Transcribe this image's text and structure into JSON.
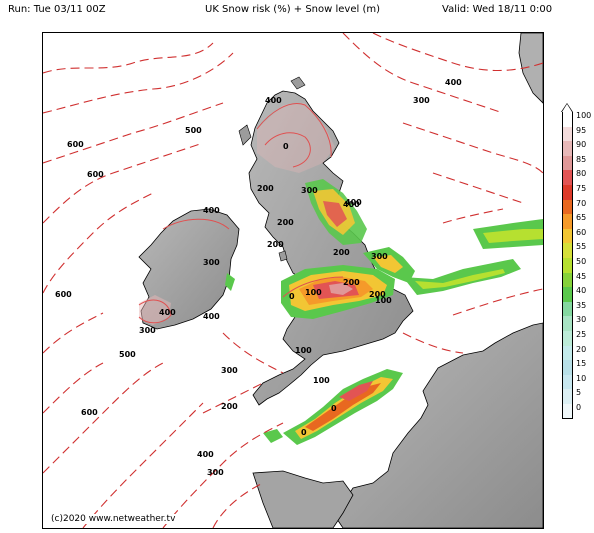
{
  "header": {
    "run": "Run: Tue 03/11 00Z",
    "title": "UK Snow risk (%) + Snow level (m)",
    "valid": "Valid: Wed 18/11 0:00"
  },
  "copyright": "(c)2020 www.netweather.tv",
  "contour_labels": [
    "400",
    "300",
    "400",
    "500",
    "600",
    "600",
    "0",
    "200",
    "200",
    "300",
    "400",
    "200",
    "400",
    "600",
    "200",
    "300",
    "200",
    "100",
    "400",
    "300",
    "400",
    "200",
    "100",
    "0",
    "100",
    "500",
    "300",
    "200",
    "600",
    "100",
    "0",
    "0",
    "400",
    "300",
    "300",
    "400"
  ],
  "legend": {
    "levels": [
      "100",
      "95",
      "90",
      "85",
      "80",
      "75",
      "70",
      "65",
      "60",
      "55",
      "50",
      "45",
      "40",
      "35",
      "30",
      "25",
      "20",
      "15",
      "10",
      "5",
      "0"
    ],
    "colors": [
      "#ffffff",
      "#f4dcdc",
      "#e8b8b8",
      "#e09898",
      "#e25454",
      "#dd3a2a",
      "#e86820",
      "#f59a2a",
      "#f2c634",
      "#d6e03a",
      "#b6e030",
      "#86d23a",
      "#5ac84c",
      "#84d8a0",
      "#a8e4c4",
      "#bcecd8",
      "#c4ecec",
      "#b8e0e8",
      "#c8e8f0",
      "#dcf0f4",
      "#f0f8fa"
    ]
  }
}
